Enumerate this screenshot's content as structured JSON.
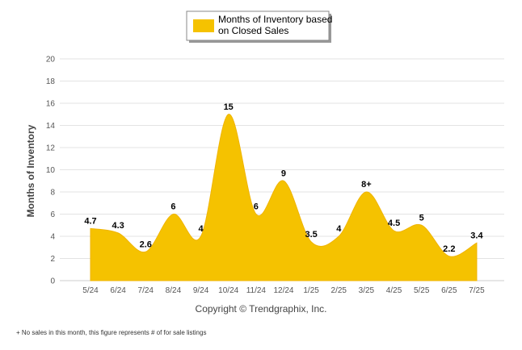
{
  "chart_data": {
    "type": "area",
    "categories": [
      "5/24",
      "6/24",
      "7/24",
      "8/24",
      "9/24",
      "10/24",
      "11/24",
      "12/24",
      "1/25",
      "2/25",
      "3/25",
      "4/25",
      "5/25",
      "6/25",
      "7/25"
    ],
    "series": [
      {
        "name": "Months of Inventory based on Closed Sales",
        "values": [
          4.7,
          4.3,
          2.6,
          6,
          4,
          15,
          6,
          9,
          3.5,
          4,
          8,
          4.5,
          5,
          2.2,
          3.4
        ],
        "labels": [
          "4.7",
          "4.3",
          "2.6",
          "6",
          "4",
          "15",
          "6",
          "9",
          "3.5",
          "4",
          "8+",
          "4.5",
          "5",
          "2.2",
          "3.4"
        ],
        "color": "#f5c200"
      }
    ],
    "ylabel": "Months of Inventory",
    "xlabel": "",
    "ylim": [
      0,
      20
    ],
    "yticks": [
      0,
      2,
      4,
      6,
      8,
      10,
      12,
      14,
      16,
      18,
      20
    ],
    "grid": true,
    "legend": "top-center"
  },
  "legend_label": "Months of Inventory based on Closed Sales",
  "copyright": "Copyright © Trendgraphix, Inc.",
  "footnote": "+ No sales in this month, this figure represents # of for sale listings"
}
